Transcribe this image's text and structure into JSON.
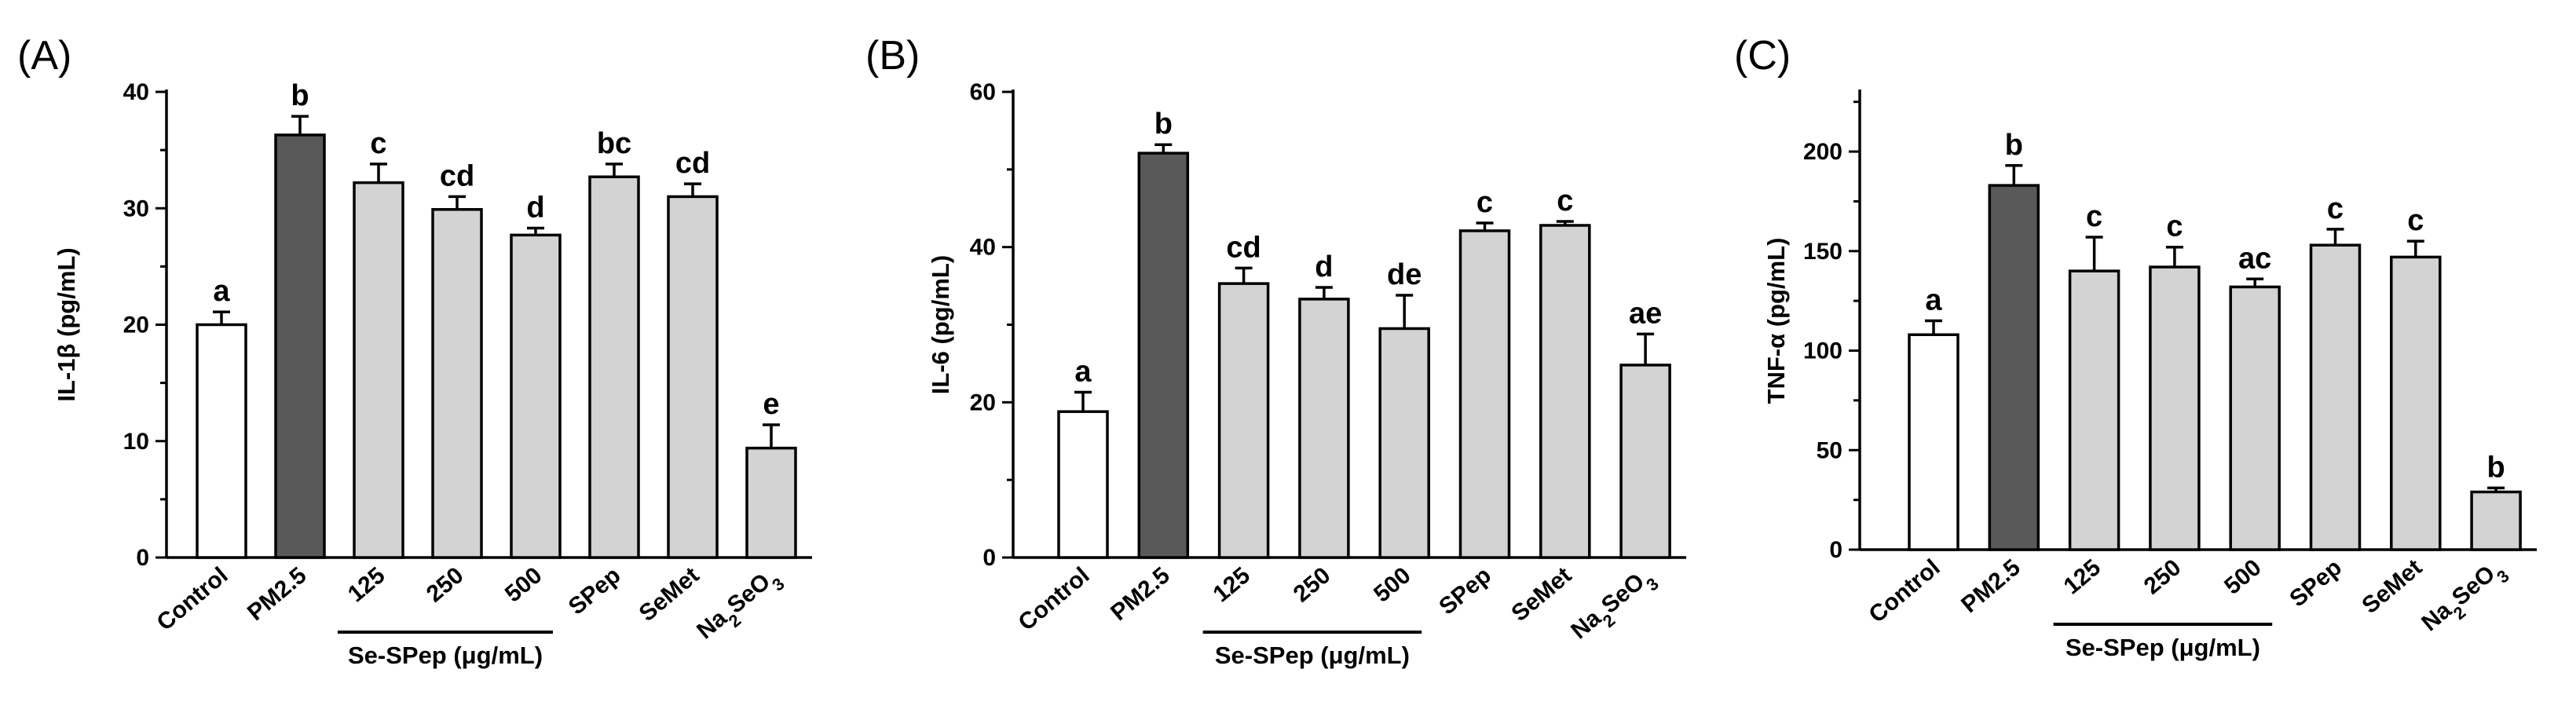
{
  "figure_colors": {
    "control_fill": "#ffffff",
    "pm25_fill": "#595959",
    "treatment_fill": "#d3d3d3",
    "stroke": "#000000"
  },
  "chart_data": [
    {
      "type": "bar",
      "panel_label": "(A)",
      "ylabel": "IL-1β (pg/mL)",
      "ylim": [
        0,
        40
      ],
      "yticks": [
        0,
        10,
        20,
        30,
        40
      ],
      "categories": [
        "Control",
        "PM2.5",
        "125",
        "250",
        "500",
        "SPep",
        "SeMet",
        "Na2SeO3"
      ],
      "values": [
        20.0,
        36.3,
        32.2,
        29.9,
        27.7,
        32.7,
        31.0,
        9.4
      ],
      "errors": [
        1.1,
        1.6,
        1.6,
        1.1,
        0.6,
        1.1,
        1.1,
        2.0
      ],
      "letters": [
        "a",
        "b",
        "c",
        "cd",
        "d",
        "bc",
        "cd",
        "e"
      ],
      "group_label": "Se-SPep (μg/mL)"
    },
    {
      "type": "bar",
      "panel_label": "(B)",
      "ylabel": "IL-6 (pg/mL)",
      "ylim": [
        0,
        60
      ],
      "yticks": [
        0,
        20,
        40,
        60
      ],
      "categories": [
        "Control",
        "PM2.5",
        "125",
        "250",
        "500",
        "SPep",
        "SeMet",
        "Na2SeO3"
      ],
      "values": [
        18.8,
        52.1,
        35.3,
        33.3,
        29.5,
        42.1,
        42.8,
        24.8
      ],
      "errors": [
        2.5,
        1.1,
        2.0,
        1.5,
        4.3,
        1.0,
        0.5,
        4.0
      ],
      "letters": [
        "a",
        "b",
        "cd",
        "d",
        "de",
        "c",
        "c",
        "ae"
      ],
      "group_label": "Se-SPep (μg/mL)"
    },
    {
      "type": "bar",
      "panel_label": "(C)",
      "ylabel": "TNF-α (pg/mL)",
      "ylim": [
        0,
        230
      ],
      "yticks": [
        0,
        50,
        100,
        150,
        200
      ],
      "categories": [
        "Control",
        "PM2.5",
        "125",
        "250",
        "500",
        "SPep",
        "SeMet",
        "Na2SeO3"
      ],
      "values": [
        108,
        183,
        140,
        142,
        132,
        153,
        147,
        29
      ],
      "errors": [
        7,
        10,
        17,
        10,
        4,
        8,
        8,
        2
      ],
      "letters": [
        "a",
        "b",
        "c",
        "c",
        "ac",
        "c",
        "c",
        "b"
      ],
      "group_label": "Se-SPep (μg/mL)"
    }
  ]
}
